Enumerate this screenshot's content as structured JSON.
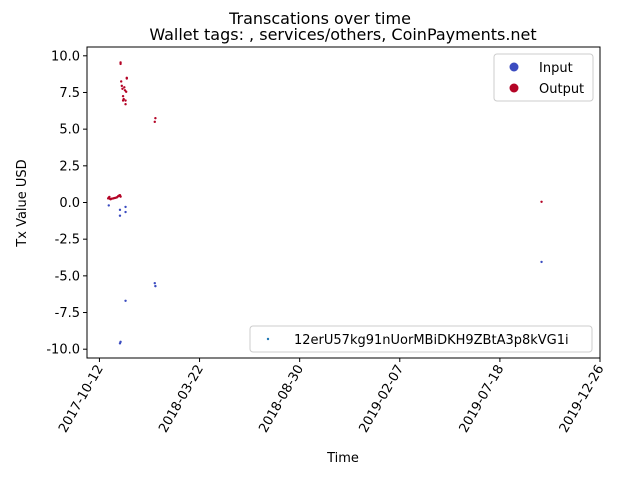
{
  "chart_data": {
    "type": "scatter",
    "title": "Transcations over time",
    "subtitle": "Wallet tags: , services/others, CoinPayments.net",
    "xlabel": "Time",
    "ylabel": "Tx Value USD",
    "x_ticks": [
      "2017-10-12",
      "2018-03-22",
      "2018-08-30",
      "2019-02-07",
      "2019-07-18",
      "2019-12-26"
    ],
    "y_ticks": [
      10.0,
      7.5,
      5.0,
      2.5,
      0.0,
      -2.5,
      -5.0,
      -7.5,
      -10.0
    ],
    "ylim": [
      -10.6,
      10.6
    ],
    "xlim_days_from_2017_10_12": [
      -20,
      805
    ],
    "legend_main": [
      {
        "label": "Input",
        "color": "#3b4cc0"
      },
      {
        "label": "Output",
        "color": "#b40426"
      }
    ],
    "legend_address": {
      "label": "12erU57kg91nUorMBiDKH9ZBtA3p8kVG1i",
      "color": "#1f77b4"
    },
    "series": [
      {
        "name": "Output",
        "color": "#b40426",
        "points": [
          [
            14,
            0.28
          ],
          [
            15,
            0.33
          ],
          [
            16,
            0.38
          ],
          [
            17,
            0.25
          ],
          [
            18,
            0.22
          ],
          [
            20,
            0.26
          ],
          [
            22,
            0.28
          ],
          [
            24,
            0.3
          ],
          [
            26,
            0.32
          ],
          [
            28,
            0.35
          ],
          [
            30,
            0.42
          ],
          [
            31,
            0.45
          ],
          [
            32,
            0.48
          ],
          [
            33,
            0.5
          ],
          [
            34,
            0.4
          ],
          [
            34,
            9.55
          ],
          [
            34,
            9.45
          ],
          [
            35,
            8.25
          ],
          [
            36,
            7.95
          ],
          [
            37,
            7.75
          ],
          [
            38,
            7.25
          ],
          [
            38,
            6.95
          ],
          [
            39,
            7.05
          ],
          [
            40,
            7.85
          ],
          [
            41,
            7.65
          ],
          [
            42,
            6.95
          ],
          [
            42,
            6.7
          ],
          [
            43,
            7.55
          ],
          [
            44,
            8.45
          ],
          [
            44,
            8.5
          ],
          [
            89,
            5.5
          ],
          [
            90,
            5.75
          ],
          [
            711,
            0.05
          ]
        ]
      },
      {
        "name": "Input",
        "color": "#3b4cc0",
        "points": [
          [
            15,
            -0.2
          ],
          [
            33,
            -0.5
          ],
          [
            33,
            -0.9
          ],
          [
            42,
            -0.3
          ],
          [
            42,
            -0.65
          ],
          [
            42,
            -6.7
          ],
          [
            34,
            -9.5
          ],
          [
            33,
            -9.6
          ],
          [
            89,
            -5.5
          ],
          [
            90,
            -5.7
          ],
          [
            711,
            -4.05
          ]
        ]
      }
    ]
  }
}
